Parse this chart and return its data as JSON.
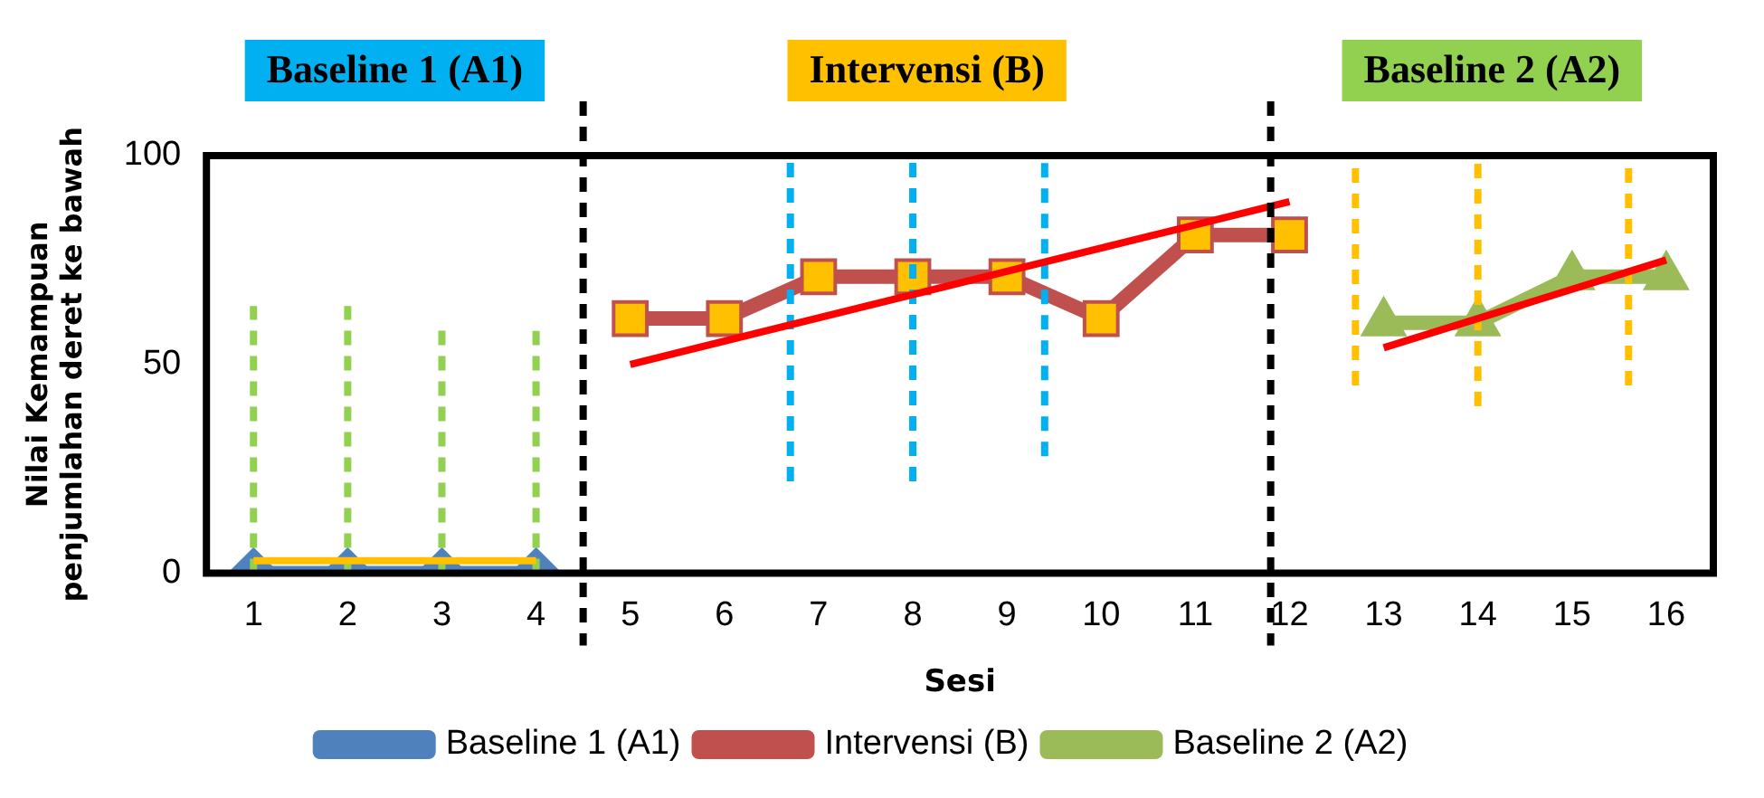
{
  "chart_data": {
    "type": "line",
    "xlabel": "Sesi",
    "ylabel": "Nilai Kemampuan\npenjumlahan deret ke bawah",
    "xlim": [
      0.5,
      16.5
    ],
    "xticks": [
      1,
      2,
      3,
      4,
      5,
      6,
      7,
      8,
      9,
      10,
      11,
      12,
      13,
      14,
      15,
      16
    ],
    "ylim": [
      0,
      100
    ],
    "yticks": [
      0,
      50,
      100
    ],
    "grid": false,
    "legend": "bottom",
    "annotations": [
      "Baseline 1 (A1)",
      "Intervensi (B)",
      "Baseline 2 (A2)"
    ],
    "ref_lines": [
      {
        "axis": "x",
        "value": 4.5,
        "line_style": "dashed",
        "color": "#000000"
      },
      {
        "axis": "x",
        "value": 11.8,
        "line_style": "dashed",
        "color": "#000000"
      }
    ],
    "series": [
      {
        "name": "Baseline 1 (A1)",
        "color": "#4f81bd",
        "marker": "diamond",
        "x": [
          1,
          2,
          3,
          4
        ],
        "values": [
          0,
          0,
          0,
          0
        ]
      },
      {
        "name": "Intervensi (B)",
        "color": "#c0504d",
        "marker": "square",
        "x": [
          5,
          6,
          7,
          8,
          9,
          10,
          11,
          12
        ],
        "values": [
          61,
          61,
          71,
          71,
          71,
          61,
          81,
          81
        ]
      },
      {
        "name": "Baseline 2 (A2)",
        "color": "#9bbb59",
        "marker": "triangle",
        "x": [
          13,
          14,
          15,
          16
        ],
        "values": [
          60,
          60,
          71,
          71
        ]
      },
      {
        "color": "#ffc000",
        "marker": "none",
        "x": [
          1,
          4
        ],
        "values": [
          3,
          3
        ]
      },
      {
        "color": "#ff0000",
        "marker": "none",
        "x": [
          5,
          12
        ],
        "values": [
          50,
          89
        ]
      },
      {
        "color": "#ff0000",
        "marker": "none",
        "x": [
          13,
          16
        ],
        "values": [
          54,
          75
        ]
      },
      {
        "color": "#92d050",
        "marker": "none",
        "line_style": "dashed",
        "x": [
          1,
          1
        ],
        "values": [
          0,
          64
        ]
      },
      {
        "color": "#92d050",
        "marker": "none",
        "line_style": "dashed",
        "x": [
          2,
          2
        ],
        "values": [
          0,
          64
        ]
      },
      {
        "color": "#92d050",
        "marker": "none",
        "line_style": "dashed",
        "x": [
          3,
          3
        ],
        "values": [
          0,
          60
        ]
      },
      {
        "color": "#92d050",
        "marker": "none",
        "line_style": "dashed",
        "x": [
          4,
          4
        ],
        "values": [
          0,
          58
        ]
      },
      {
        "color": "#00b0f0",
        "marker": "none",
        "line_style": "dashed",
        "x": [
          6.7,
          6.7
        ],
        "values": [
          22,
          100
        ]
      },
      {
        "color": "#00b0f0",
        "marker": "none",
        "line_style": "dashed",
        "x": [
          8,
          8
        ],
        "values": [
          22,
          100
        ]
      },
      {
        "color": "#00b0f0",
        "marker": "none",
        "line_style": "dashed",
        "x": [
          9.4,
          9.4
        ],
        "values": [
          28,
          100
        ]
      },
      {
        "color": "#ffc000",
        "marker": "none",
        "line_style": "dashed",
        "x": [
          12.7,
          12.7
        ],
        "values": [
          45,
          100
        ]
      },
      {
        "color": "#ffc000",
        "marker": "none",
        "line_style": "dashed",
        "x": [
          14,
          14
        ],
        "values": [
          40,
          100
        ]
      },
      {
        "color": "#ffc000",
        "marker": "none",
        "line_style": "dashed",
        "x": [
          15.6,
          15.6
        ],
        "values": [
          45,
          100
        ]
      }
    ]
  }
}
